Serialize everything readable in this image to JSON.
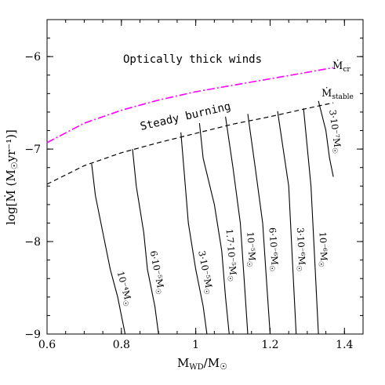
{
  "chart_data": {
    "type": "line",
    "xlabel_main": "M",
    "xlabel_sub": "WD",
    "xlabel_tail": "/M",
    "sun_symbol": "☉",
    "ylabel_main": "log[Ṁ (M",
    "ylabel_tail": "yr⁻¹)]",
    "xlim": [
      0.6,
      1.45
    ],
    "ylim": [
      -9,
      -5.6
    ],
    "x_ticks": [
      0.6,
      0.8,
      1.0,
      1.2,
      1.4
    ],
    "x_tick_labels": [
      "0.6",
      "0.8",
      "1",
      "1.2",
      "1.4"
    ],
    "y_ticks": [
      -9,
      -8,
      -7,
      -6
    ],
    "y_tick_labels": [
      "−9",
      "−8",
      "−7",
      "−6"
    ],
    "region_labels": {
      "top": "Optically thick winds",
      "middle": "Steady burning"
    },
    "boundary_curves": [
      {
        "id": "mdot-cr",
        "label_main": "Ṁ",
        "label_sub": "cr",
        "color": "#ff00ff",
        "style": "dash-dot",
        "x": [
          0.6,
          0.7,
          0.8,
          0.9,
          1.0,
          1.1,
          1.2,
          1.3,
          1.37
        ],
        "y": [
          -6.93,
          -6.72,
          -6.58,
          -6.47,
          -6.38,
          -6.31,
          -6.24,
          -6.17,
          -6.12
        ]
      },
      {
        "id": "mdot-stable",
        "label_main": "Ṁ",
        "label_sub": "stable",
        "color": "#000000",
        "style": "dashed",
        "x": [
          0.6,
          0.7,
          0.8,
          0.9,
          1.0,
          1.1,
          1.2,
          1.3,
          1.37
        ],
        "y": [
          -7.38,
          -7.18,
          -7.04,
          -6.93,
          -6.83,
          -6.73,
          -6.65,
          -6.56,
          -6.5
        ]
      }
    ],
    "series": [
      {
        "label": "10⁻⁴M",
        "x": [
          0.72,
          0.73,
          0.75,
          0.77,
          0.79,
          0.8,
          0.81
        ],
        "y": [
          -7.16,
          -7.5,
          -7.9,
          -8.3,
          -8.6,
          -8.8,
          -9.0
        ]
      },
      {
        "label": "6·10⁻⁵M",
        "x": [
          0.83,
          0.84,
          0.86,
          0.87,
          0.89,
          0.9
        ],
        "y": [
          -7.0,
          -7.4,
          -7.9,
          -8.3,
          -8.7,
          -9.0
        ]
      },
      {
        "label": "3·10⁻⁵M",
        "x": [
          0.96,
          0.97,
          0.98,
          1.0,
          1.02,
          1.03
        ],
        "y": [
          -6.82,
          -7.3,
          -7.8,
          -8.3,
          -8.7,
          -9.0
        ]
      },
      {
        "label": "1.7·10⁻⁵M",
        "x": [
          1.01,
          1.02,
          1.05,
          1.07,
          1.08,
          1.09
        ],
        "y": [
          -6.72,
          -7.1,
          -7.6,
          -8.1,
          -8.6,
          -9.0
        ]
      },
      {
        "label": "10⁻⁵M",
        "x": [
          1.08,
          1.1,
          1.12,
          1.13,
          1.14
        ],
        "y": [
          -6.65,
          -7.2,
          -7.8,
          -8.4,
          -9.0
        ]
      },
      {
        "label": "6·10⁻⁶M",
        "x": [
          1.14,
          1.16,
          1.18,
          1.19,
          1.2
        ],
        "y": [
          -6.62,
          -7.2,
          -7.8,
          -8.4,
          -9.0
        ]
      },
      {
        "label": "3·10⁻⁶M",
        "x": [
          1.22,
          1.25,
          1.26,
          1.27
        ],
        "y": [
          -6.59,
          -7.4,
          -8.2,
          -9.0
        ]
      },
      {
        "label": "10⁻⁶M",
        "x": [
          1.29,
          1.31,
          1.32,
          1.33
        ],
        "y": [
          -6.56,
          -7.4,
          -8.2,
          -9.0
        ]
      },
      {
        "label": "3·10⁻⁷M",
        "x": [
          1.33,
          1.35,
          1.36,
          1.37
        ],
        "y": [
          -6.48,
          -6.8,
          -7.1,
          -7.3
        ]
      }
    ]
  }
}
